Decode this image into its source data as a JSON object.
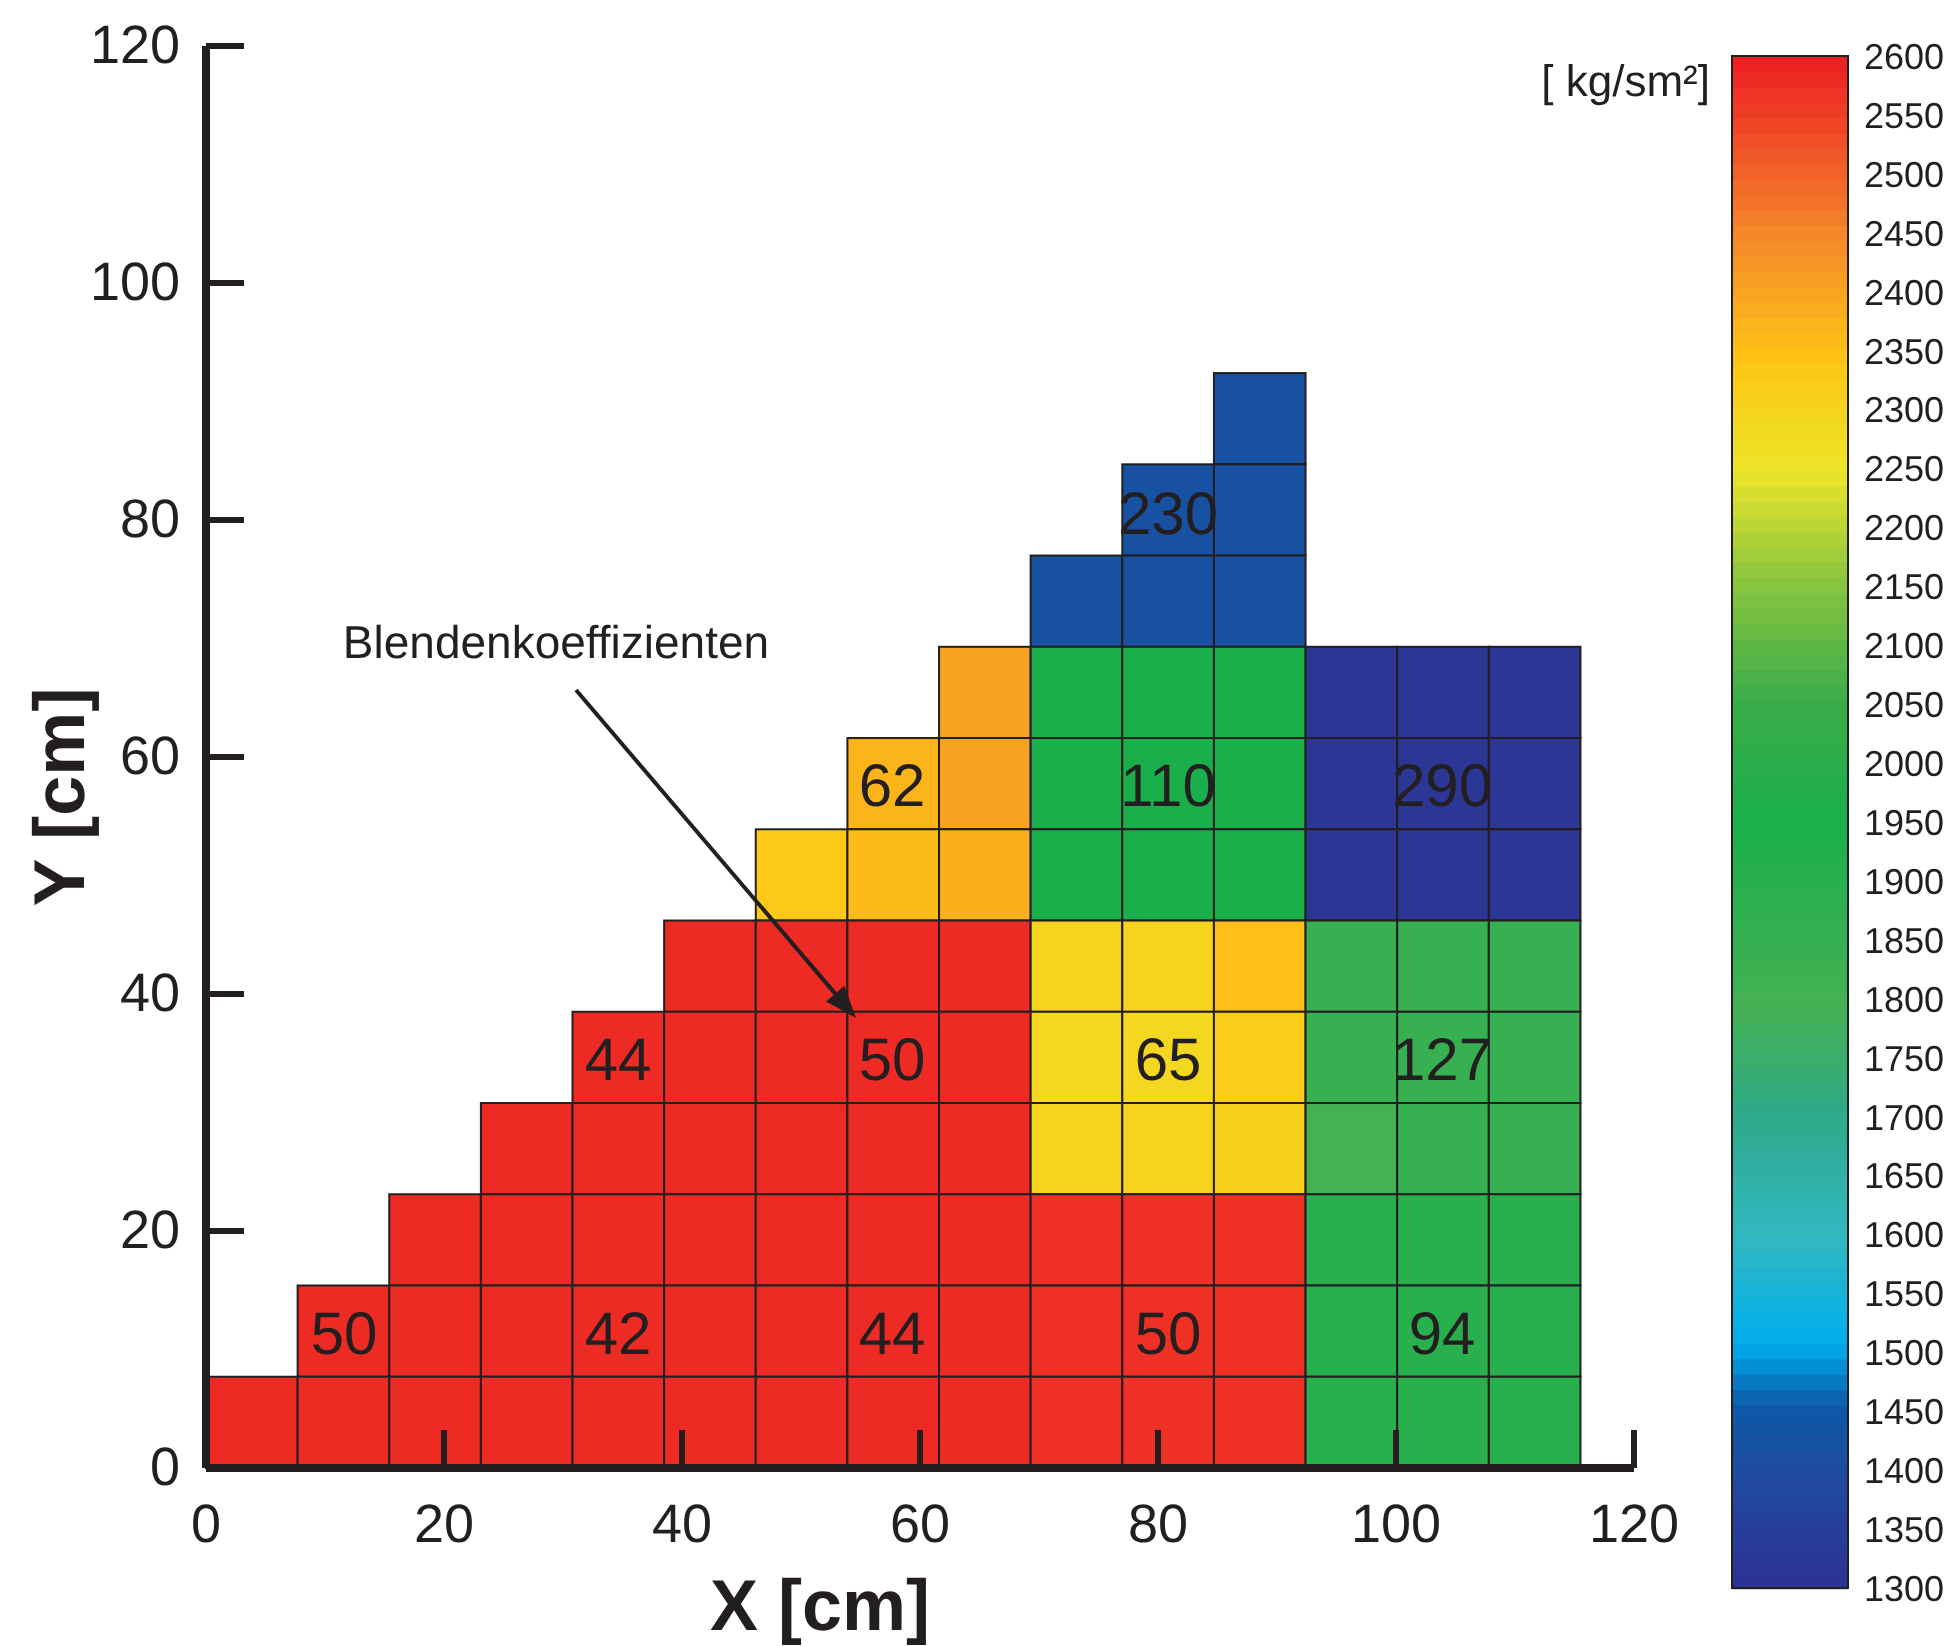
{
  "chart_data": {
    "type": "heatmap",
    "xlabel": "X [cm]",
    "ylabel": "Y [cm]",
    "clabel": "[ kg/sm²]",
    "x": [
      3.85,
      11.55,
      19.25,
      26.95,
      34.65,
      42.35,
      50.05,
      57.75,
      65.45,
      73.15,
      80.85,
      88.55,
      96.25,
      103.95,
      111.65
    ],
    "y": [
      88.55,
      80.85,
      73.15,
      65.45,
      57.75,
      50.05,
      42.35,
      34.65,
      26.95,
      19.25,
      11.55,
      3.85
    ],
    "cells": [
      [
        null,
        null,
        null,
        null,
        null,
        null,
        null,
        null,
        null,
        null,
        null,
        1420,
        null,
        null,
        null
      ],
      [
        null,
        null,
        null,
        null,
        null,
        null,
        null,
        null,
        null,
        null,
        1420,
        1420,
        null,
        null,
        null
      ],
      [
        null,
        null,
        null,
        null,
        null,
        null,
        null,
        null,
        null,
        1420,
        1420,
        1420,
        null,
        null,
        null
      ],
      [
        null,
        null,
        null,
        null,
        null,
        null,
        null,
        null,
        2400,
        1950,
        1950,
        1950,
        1320,
        1320,
        1320
      ],
      [
        null,
        null,
        null,
        null,
        null,
        null,
        null,
        2370,
        2400,
        1950,
        1950,
        1950,
        1320,
        1320,
        1320
      ],
      [
        null,
        null,
        null,
        null,
        null,
        null,
        2330,
        2360,
        2380,
        1950,
        1950,
        1950,
        1320,
        1320,
        1320
      ],
      [
        null,
        null,
        null,
        null,
        null,
        2580,
        2580,
        2580,
        2580,
        2300,
        2300,
        2350,
        1850,
        1850,
        1850
      ],
      [
        null,
        null,
        null,
        null,
        2580,
        2580,
        2580,
        2580,
        2580,
        2290,
        2290,
        2320,
        1850,
        1850,
        1850
      ],
      [
        null,
        null,
        null,
        2580,
        2580,
        2580,
        2580,
        2580,
        2580,
        2300,
        2300,
        2310,
        1800,
        1850,
        1850
      ],
      [
        null,
        null,
        2580,
        2580,
        2580,
        2580,
        2580,
        2580,
        2580,
        2570,
        2570,
        2570,
        1900,
        1900,
        1900
      ],
      [
        null,
        2580,
        2580,
        2580,
        2580,
        2580,
        2580,
        2580,
        2580,
        2570,
        2570,
        2570,
        1900,
        1900,
        1900
      ],
      [
        2580,
        2580,
        2580,
        2580,
        2580,
        2580,
        2580,
        2580,
        2580,
        2570,
        2570,
        2570,
        1900,
        1900,
        1900
      ]
    ],
    "clim": [
      1300,
      2600
    ],
    "cticks": [
      1300,
      1350,
      1400,
      1450,
      1500,
      1550,
      1600,
      1650,
      1700,
      1750,
      1800,
      1850,
      1900,
      1950,
      2000,
      2050,
      2100,
      2150,
      2200,
      2250,
      2300,
      2350,
      2400,
      2450,
      2500,
      2550,
      2600
    ],
    "xlim": [
      0,
      120
    ],
    "xticks": [
      0,
      20,
      40,
      60,
      80,
      100,
      120
    ],
    "ylim": [
      0,
      120
    ],
    "yticks": [
      0,
      20,
      40,
      60,
      80,
      100,
      120
    ],
    "annotations": [
      "50",
      "42",
      "44",
      "50",
      "94",
      "44",
      "50",
      "65",
      "127",
      "62",
      "110",
      "290",
      "230",
      "Blendenkoeffizienten"
    ]
  }
}
